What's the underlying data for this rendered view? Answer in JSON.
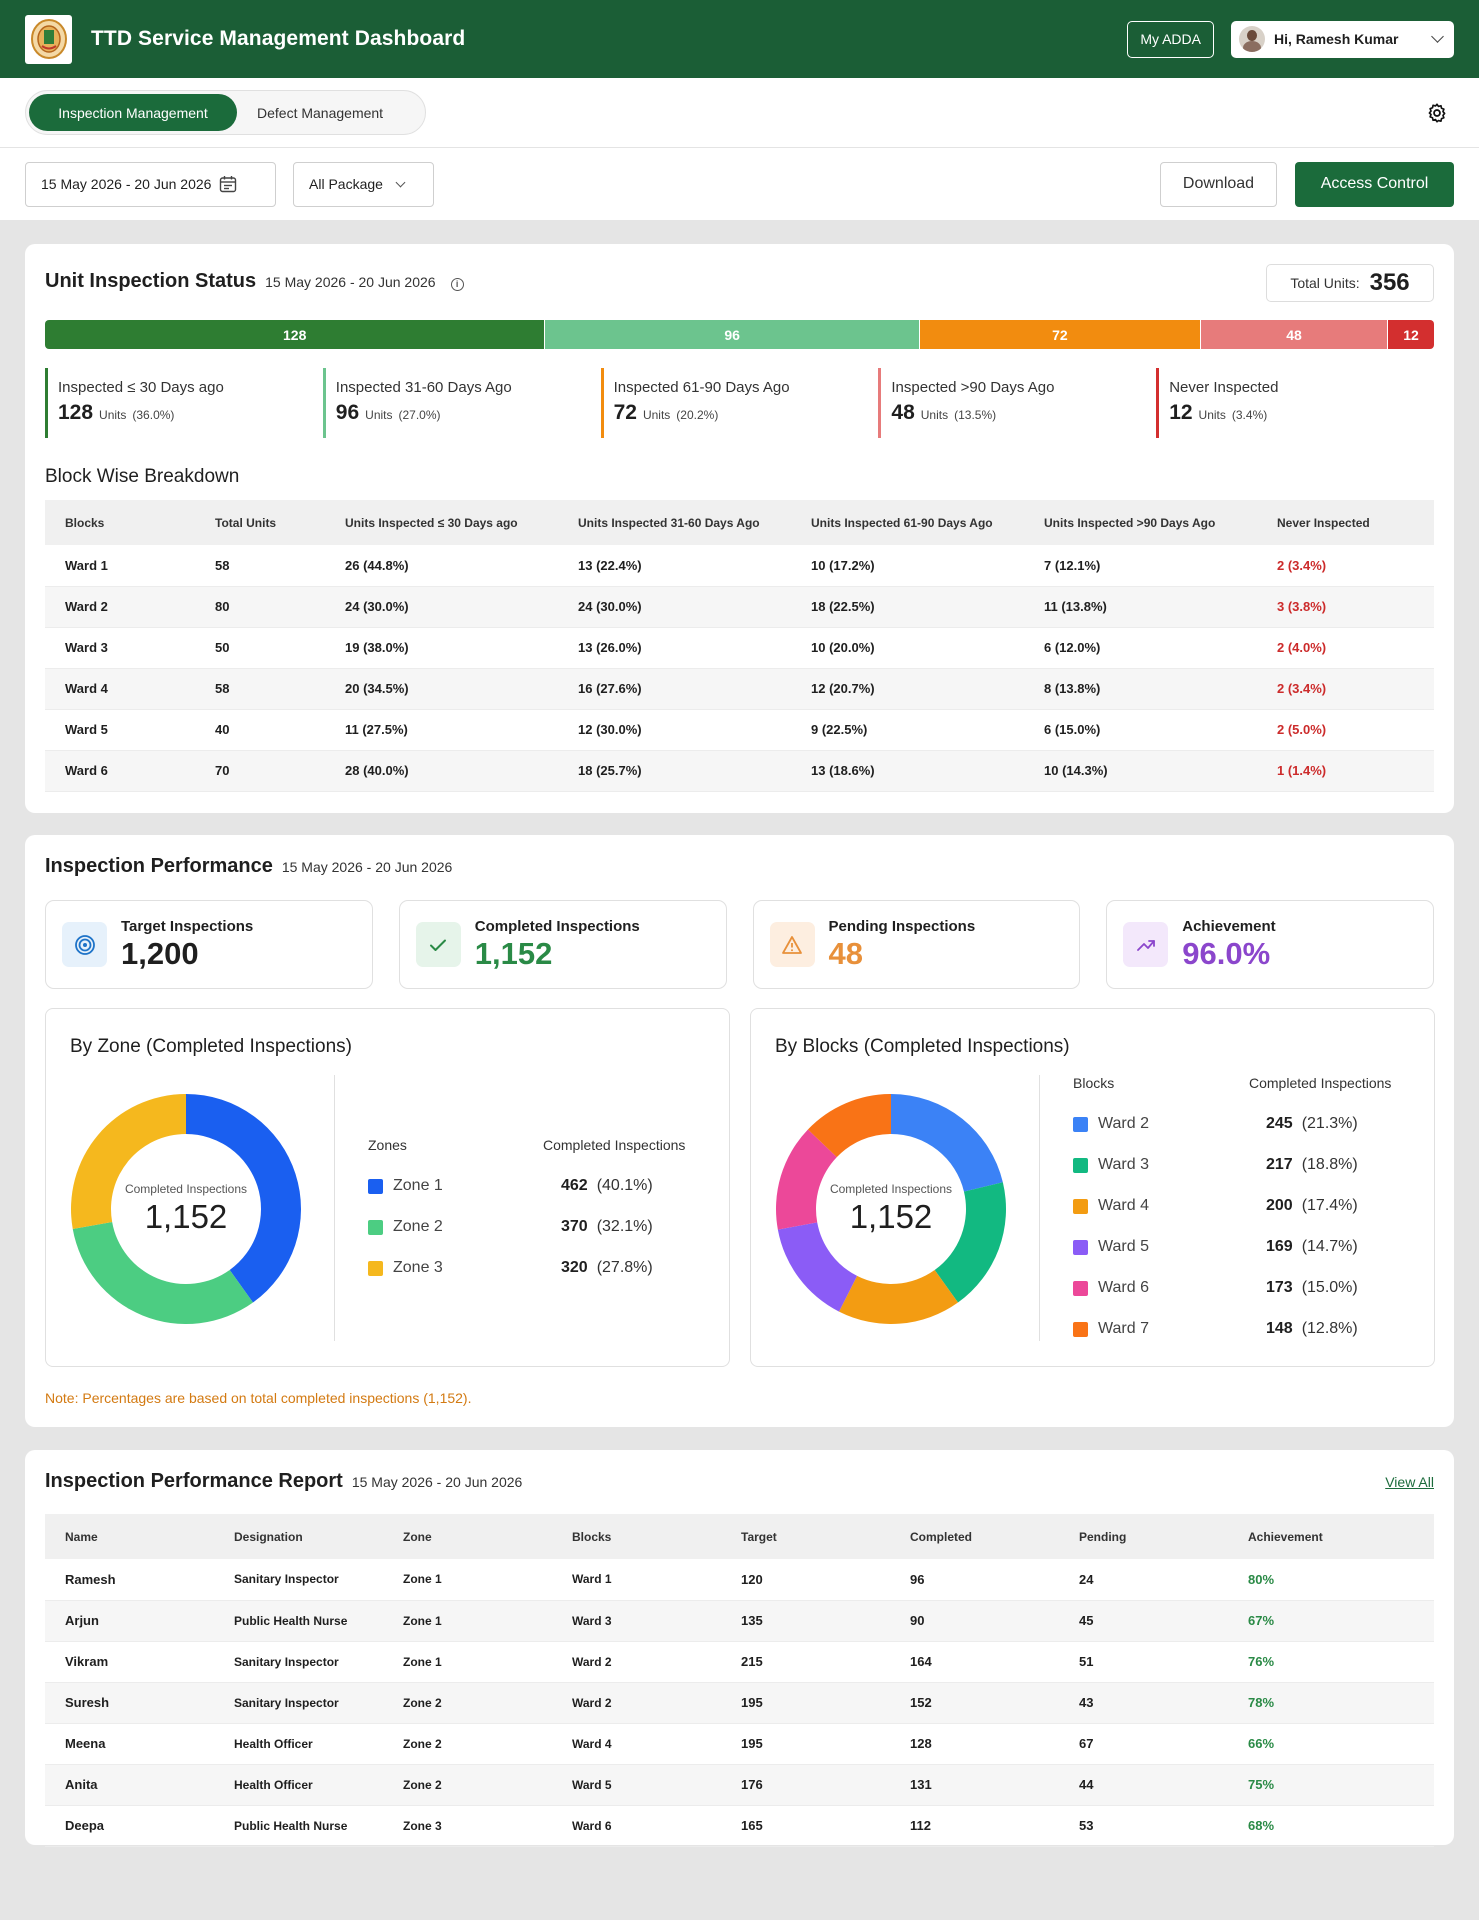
{
  "header": {
    "title": "TTD Service Management Dashboard",
    "my_adda": "My ADDA",
    "user_greeting": "Hi, Ramesh Kumar"
  },
  "tabs": [
    {
      "label": "Inspection Management",
      "active": true
    },
    {
      "label": "Defect Management",
      "active": false
    }
  ],
  "filters": {
    "date_range": "15 May 2026 - 20 Jun 2026",
    "package": "All Package",
    "download": "Download",
    "access_control": "Access Control"
  },
  "unit_status": {
    "title": "Unit Inspection Status",
    "date": "15 May 2026 - 20 Jun 2026",
    "total_label": "Total Units:",
    "total": "356",
    "segments": [
      {
        "value": 128,
        "color": "#2e7d32"
      },
      {
        "value": 96,
        "color": "#6cc48e"
      },
      {
        "value": 72,
        "color": "#f28c0f"
      },
      {
        "value": 48,
        "color": "#e77b7b"
      },
      {
        "value": 12,
        "color": "#d32f2f"
      }
    ],
    "legend": [
      {
        "label": "Inspected ≤ 30 Days ago",
        "value": "128",
        "unit": "Units",
        "pct": "(36.0%)",
        "color": "#2e7d32"
      },
      {
        "label": "Inspected 31-60 Days Ago",
        "value": "96",
        "unit": "Units",
        "pct": "(27.0%)",
        "color": "#6cc48e"
      },
      {
        "label": "Inspected 61-90 Days Ago",
        "value": "72",
        "unit": "Units",
        "pct": "(20.2%)",
        "color": "#f28c0f"
      },
      {
        "label": "Inspected >90 Days Ago",
        "value": "48",
        "unit": "Units",
        "pct": "(13.5%)",
        "color": "#e77b7b"
      },
      {
        "label": "Never Inspected",
        "value": "12",
        "unit": "Units",
        "pct": "(3.4%)",
        "color": "#d32f2f"
      }
    ]
  },
  "block_breakdown": {
    "title": "Block Wise Breakdown",
    "columns": [
      "Blocks",
      "Total Units",
      "Units Inspected ≤ 30 Days ago",
      "Units Inspected 31-60 Days Ago",
      "Units Inspected 61-90 Days Ago",
      "Units Inspected >90 Days Ago",
      "Never Inspected"
    ],
    "rows": [
      [
        "Ward 1",
        "58",
        "26 (44.8%)",
        "13 (22.4%)",
        "10 (17.2%)",
        "7 (12.1%)",
        "2 (3.4%)"
      ],
      [
        "Ward 2",
        "80",
        "24 (30.0%)",
        "24 (30.0%)",
        "18 (22.5%)",
        "11 (13.8%)",
        "3 (3.8%)"
      ],
      [
        "Ward 3",
        "50",
        "19 (38.0%)",
        "13 (26.0%)",
        "10 (20.0%)",
        "6 (12.0%)",
        "2 (4.0%)"
      ],
      [
        "Ward 4",
        "58",
        "20 (34.5%)",
        "16 (27.6%)",
        "12 (20.7%)",
        "8 (13.8%)",
        "2 (3.4%)"
      ],
      [
        "Ward 5",
        "40",
        "11 (27.5%)",
        "12 (30.0%)",
        "9 (22.5%)",
        "6 (15.0%)",
        "2 (5.0%)"
      ],
      [
        "Ward 6",
        "70",
        "28 (40.0%)",
        "18 (25.7%)",
        "13 (18.6%)",
        "10 (14.3%)",
        "1 (1.4%)"
      ]
    ]
  },
  "performance": {
    "title": "Inspection Performance",
    "date": "15 May 2026 - 20 Jun 2026",
    "kpis": [
      {
        "label": "Target Inspections",
        "value": "1,200",
        "icon": "target-icon",
        "color": "#1f1f1f",
        "bg": "#e6f1fb",
        "ico_color": "#1e73c8"
      },
      {
        "label": "Completed Inspections",
        "value": "1,152",
        "icon": "check-icon",
        "color": "#2a8a46",
        "bg": "#e6f4ea",
        "ico_color": "#2a8a46"
      },
      {
        "label": "Pending Inspections",
        "value": "48",
        "icon": "warning-icon",
        "color": "#e8903a",
        "bg": "#fdeee0",
        "ico_color": "#e8903a"
      },
      {
        "label": "Achievement",
        "value": "96.0%",
        "icon": "trend-up-icon",
        "color": "#8b46cc",
        "bg": "#f3e8fb",
        "ico_color": "#8b46cc"
      }
    ],
    "note": "Note: Percentages are based on total completed inspections (1,152)."
  },
  "zone_chart": {
    "title": "By Zone (Completed Inspections)",
    "center_label": "Completed Inspections",
    "center_value": "1,152",
    "col_name": "Zones",
    "col_value": "Completed Inspections",
    "items": [
      {
        "name": "Zone 1",
        "value": 462,
        "value_text": "462",
        "pct": "(40.1%)",
        "color": "#1a5ff0"
      },
      {
        "name": "Zone 2",
        "value": 370,
        "value_text": "370",
        "pct": "(32.1%)",
        "color": "#4ccd82"
      },
      {
        "name": "Zone 3",
        "value": 320,
        "value_text": "320",
        "pct": "(27.8%)",
        "color": "#f5b81e"
      }
    ]
  },
  "chart_data": [
    {
      "type": "pie",
      "title": "By Zone (Completed Inspections)",
      "categories": [
        "Zone 1",
        "Zone 2",
        "Zone 3"
      ],
      "values": [
        462,
        370,
        320
      ]
    },
    {
      "type": "pie",
      "title": "By Blocks (Completed Inspections)",
      "categories": [
        "Ward 2",
        "Ward 3",
        "Ward 4",
        "Ward 5",
        "Ward 6",
        "Ward 7"
      ],
      "values": [
        245,
        217,
        200,
        169,
        173,
        148
      ]
    }
  ],
  "block_chart": {
    "title": "By Blocks (Completed Inspections)",
    "center_label": "Completed Inspections",
    "center_value": "1,152",
    "col_name": "Blocks",
    "col_value": "Completed Inspections",
    "items": [
      {
        "name": "Ward 2",
        "value": 245,
        "value_text": "245",
        "pct": "(21.3%)",
        "color": "#3b82f6"
      },
      {
        "name": "Ward 3",
        "value": 217,
        "value_text": "217",
        "pct": "(18.8%)",
        "color": "#12b981"
      },
      {
        "name": "Ward 4",
        "value": 200,
        "value_text": "200",
        "pct": "(17.4%)",
        "color": "#f39c12"
      },
      {
        "name": "Ward 5",
        "value": 169,
        "value_text": "169",
        "pct": "(14.7%)",
        "color": "#8b5cf6"
      },
      {
        "name": "Ward 6",
        "value": 173,
        "value_text": "173",
        "pct": "(15.0%)",
        "color": "#ec4899"
      },
      {
        "name": "Ward 7",
        "value": 148,
        "value_text": "148",
        "pct": "(12.8%)",
        "color": "#f97316"
      }
    ]
  },
  "report": {
    "title": "Inspection Performance Report",
    "date": "15 May 2026 - 20 Jun 2026",
    "view_all": "View All",
    "columns": [
      "Name",
      "Designation",
      "Zone",
      "Blocks",
      "Target",
      "Completed",
      "Pending",
      "Achievement"
    ],
    "rows": [
      [
        "Ramesh",
        "Sanitary Inspector",
        "Zone 1",
        "Ward 1",
        "120",
        "96",
        "24",
        "80%"
      ],
      [
        "Arjun",
        "Public Health Nurse",
        "Zone 1",
        "Ward 3",
        "135",
        "90",
        "45",
        "67%"
      ],
      [
        "Vikram",
        "Sanitary Inspector",
        "Zone 1",
        "Ward 2",
        "215",
        "164",
        "51",
        "76%"
      ],
      [
        "Suresh",
        "Sanitary Inspector",
        "Zone 2",
        "Ward 2",
        "195",
        "152",
        "43",
        "78%"
      ],
      [
        "Meena",
        "Health Officer",
        "Zone 2",
        "Ward 4",
        "195",
        "128",
        "67",
        "66%"
      ],
      [
        "Anita",
        "Health Officer",
        "Zone 2",
        "Ward 5",
        "176",
        "131",
        "44",
        "75%"
      ],
      [
        "Deepa",
        "Public Health Nurse",
        "Zone 3",
        "Ward 6",
        "165",
        "112",
        "53",
        "68%"
      ]
    ]
  }
}
